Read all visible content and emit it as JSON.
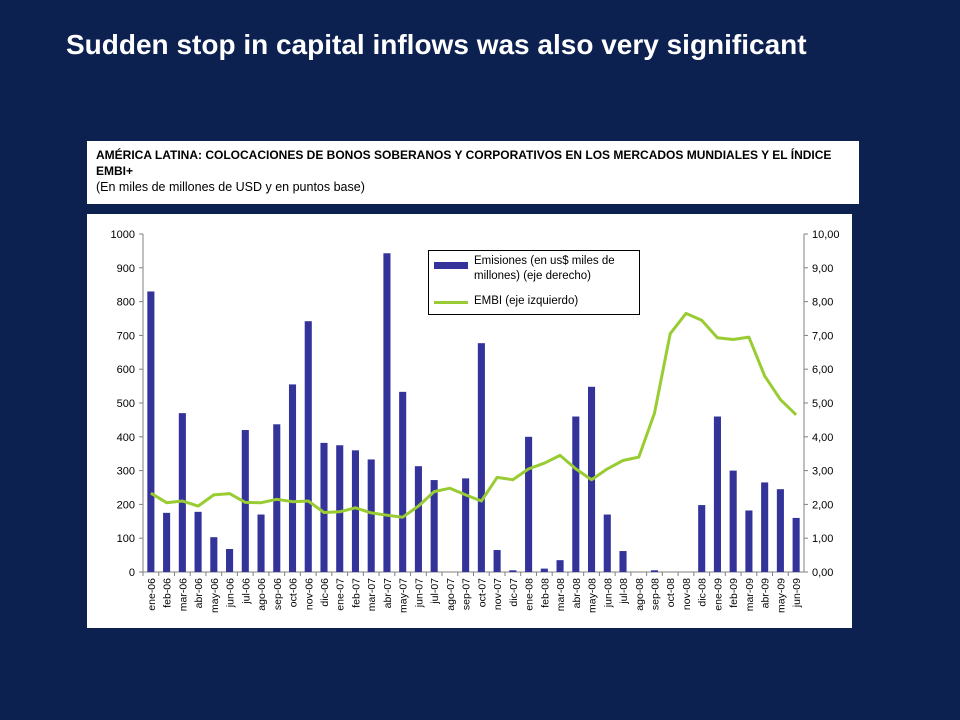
{
  "slide": {
    "title": "Sudden stop in capital inflows was also very significant"
  },
  "caption": {
    "title": "AMÉRICA LATINA: COLOCACIONES DE BONOS SOBERANOS Y CORPORATIVOS EN LOS MERCADOS MUNDIALES Y EL ÍNDICE EMBI+",
    "subtitle": "(En miles de millones de USD y en puntos base)"
  },
  "colors": {
    "background": "#0c2150",
    "bar": "#333399",
    "line": "#99cc33"
  },
  "chart_data": {
    "type": "bar+line",
    "categories": [
      "ene-06",
      "feb-06",
      "mar-06",
      "abr-06",
      "may-06",
      "jun-06",
      "jul-06",
      "ago-06",
      "sep-06",
      "oct-06",
      "nov-06",
      "dic-06",
      "ene-07",
      "feb-07",
      "mar-07",
      "abr-07",
      "may-07",
      "jun-07",
      "jul-07",
      "ago-07",
      "sep-07",
      "oct-07",
      "nov-07",
      "dic-07",
      "ene-08",
      "feb-08",
      "mar-08",
      "abr-08",
      "may-08",
      "jun-08",
      "jul-08",
      "ago-08",
      "sep-08",
      "oct-08",
      "nov-08",
      "dic-08",
      "ene-09",
      "feb-09",
      "mar-09",
      "abr-09",
      "may-09",
      "jun-09"
    ],
    "series": [
      {
        "name": "Emisiones (en us$ miles de millones) (eje derecho)",
        "type": "bar",
        "axis": "right",
        "values": [
          8.3,
          1.75,
          4.7,
          1.78,
          1.03,
          0.68,
          4.2,
          1.7,
          4.37,
          5.55,
          7.42,
          3.82,
          3.75,
          3.6,
          3.33,
          9.43,
          5.33,
          3.13,
          2.72,
          0.0,
          2.77,
          6.77,
          0.65,
          0.05,
          4.0,
          0.1,
          0.35,
          4.6,
          5.48,
          1.7,
          0.62,
          0.0,
          0.05,
          0.0,
          0.0,
          1.98,
          4.6,
          3.0,
          1.82,
          2.65,
          2.45,
          1.6
        ]
      },
      {
        "name": "EMBI (eje izquierdo)",
        "type": "line",
        "axis": "left",
        "values": [
          233,
          205,
          210,
          195,
          228,
          232,
          206,
          205,
          215,
          208,
          210,
          176,
          178,
          190,
          175,
          168,
          162,
          195,
          238,
          248,
          228,
          210,
          280,
          273,
          305,
          322,
          345,
          305,
          273,
          305,
          330,
          340,
          470,
          705,
          765,
          745,
          693,
          688,
          695,
          580,
          510,
          465
        ]
      }
    ],
    "y_left": {
      "min": 0,
      "max": 1000,
      "step": 100,
      "ticks": [
        "0",
        "100",
        "200",
        "300",
        "400",
        "500",
        "600",
        "700",
        "800",
        "900",
        "1000"
      ]
    },
    "y_right": {
      "min": 0,
      "max": 10,
      "step": 1,
      "ticks": [
        "0,00",
        "1,00",
        "2,00",
        "3,00",
        "4,00",
        "5,00",
        "6,00",
        "7,00",
        "8,00",
        "9,00",
        "10,00"
      ]
    },
    "grid": false,
    "legend_position": "top-center"
  },
  "legend": {
    "bar_label_line1": "Emisiones (en us$ miles de",
    "bar_label_line2": "millones) (eje derecho)",
    "line_label": "EMBI (eje izquierdo)"
  }
}
